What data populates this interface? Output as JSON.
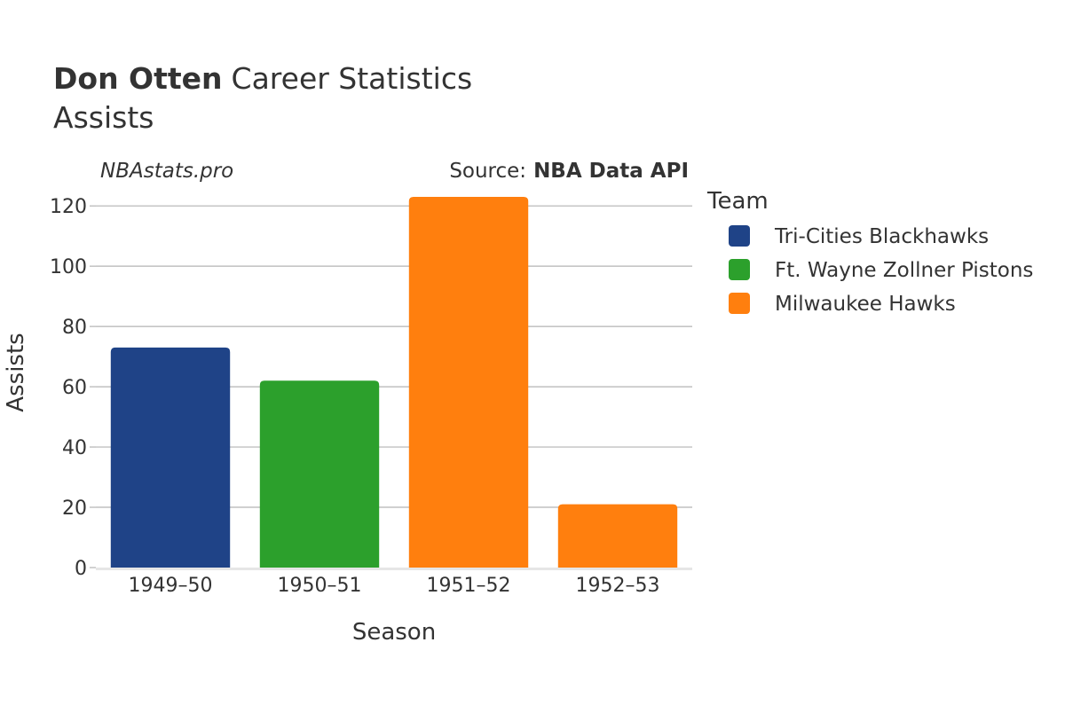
{
  "chart_data": {
    "type": "bar",
    "title": "Don Otten",
    "title_suffix": "Career Statistics",
    "subtitle": "Assists",
    "watermark": "NBAstats.pro",
    "source_label": "Source:",
    "source_name": "NBA Data API",
    "xlabel": "Season",
    "ylabel": "Assists",
    "categories": [
      "1949–50",
      "1950–51",
      "1951–52",
      "1952–53"
    ],
    "values": [
      73,
      62,
      123,
      21
    ],
    "bar_teams": [
      "Tri-Cities Blackhawks",
      "Ft. Wayne Zollner Pistons",
      "Milwaukee Hawks",
      "Milwaukee Hawks"
    ],
    "ylim": [
      0,
      128
    ],
    "yticks": [
      0,
      20,
      40,
      60,
      80,
      100,
      120
    ],
    "grid": true,
    "legend_title": "Team",
    "legend_position": "right",
    "legend": [
      {
        "name": "Tri-Cities Blackhawks",
        "color": "#1f4387"
      },
      {
        "name": "Ft. Wayne Zollner Pistons",
        "color": "#2ca02c"
      },
      {
        "name": "Milwaukee Hawks",
        "color": "#ff7f0e"
      }
    ]
  }
}
